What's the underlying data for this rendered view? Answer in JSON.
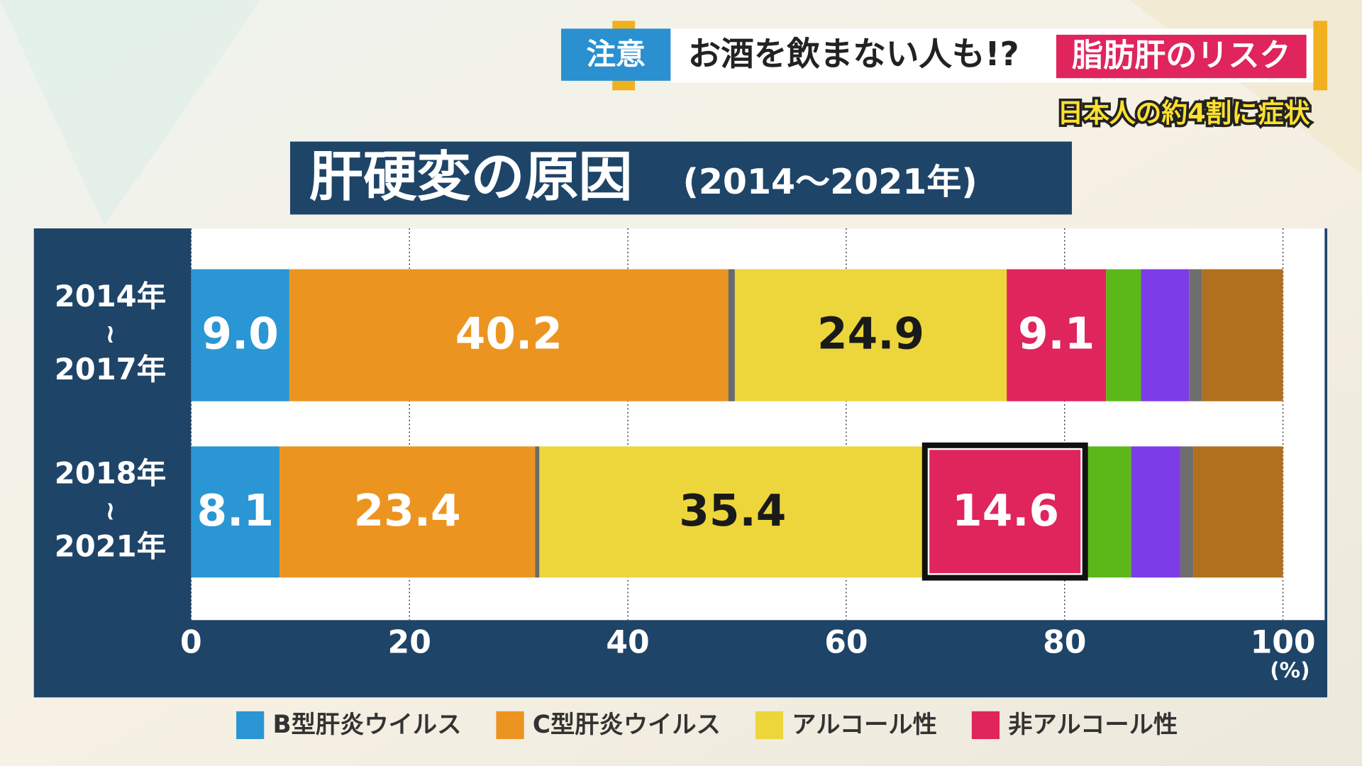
{
  "banner": {
    "tag": "注意",
    "headline": "お酒を飲まない人も!?",
    "highlight": "脂肪肝のリスク",
    "subhead": "日本人の約4割に症状"
  },
  "chart_data": {
    "type": "bar",
    "orientation": "horizontal",
    "stacked": true,
    "title": "肝硬変の原因",
    "subtitle": "(2014～2021年)",
    "x_unit": "(%)",
    "categories": [
      [
        "2014年",
        "≀",
        "2017年"
      ],
      [
        "2018年",
        "≀",
        "2021年"
      ]
    ],
    "xlim": [
      0,
      100
    ],
    "xticks": [
      0,
      20,
      40,
      60,
      80,
      100
    ],
    "grid": true,
    "series": [
      {
        "name": "B型肝炎ウイルス",
        "color": "#2a96d4",
        "label_color": "#ffffff",
        "values": [
          9.0,
          8.1
        ],
        "value_labels": [
          "9.0",
          "8.1"
        ]
      },
      {
        "name": "C型肝炎ウイルス",
        "color": "#ec9420",
        "label_color": "#ffffff",
        "values": [
          40.2,
          23.4
        ],
        "value_labels": [
          "40.2",
          "23.4"
        ]
      },
      {
        "color": "#6b6b6b",
        "values": [
          0.6,
          0.4
        ]
      },
      {
        "name": "アルコール性",
        "color": "#ecd63c",
        "label_color": "#1a1a1a",
        "values": [
          24.9,
          35.4
        ],
        "value_labels": [
          "24.9",
          "35.4"
        ]
      },
      {
        "name": "非アルコール性",
        "color": "#e0245c",
        "label_color": "#ffffff",
        "values": [
          9.1,
          14.6
        ],
        "value_labels": [
          "9.1",
          "14.6"
        ]
      },
      {
        "color": "#5cb818",
        "values": [
          3.2,
          4.2
        ]
      },
      {
        "color": "#7c3ce8",
        "values": [
          4.4,
          4.5
        ]
      },
      {
        "color": "#6e6e6e",
        "values": [
          1.2,
          1.2
        ]
      },
      {
        "color": "#b0701e",
        "values": [
          7.4,
          8.2
        ]
      }
    ]
  }
}
